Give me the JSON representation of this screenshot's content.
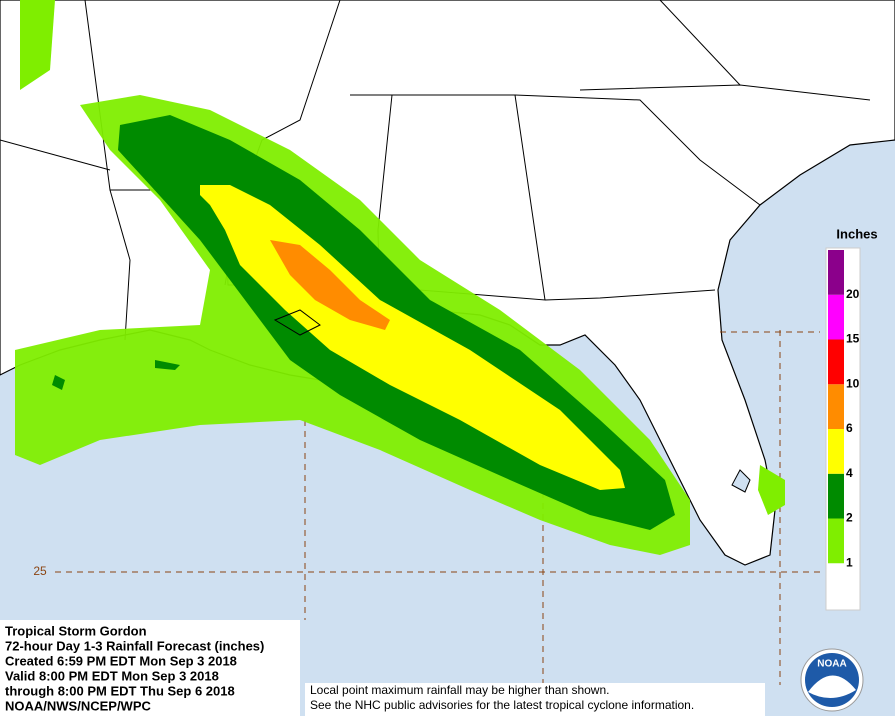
{
  "map": {
    "lat_label": "25"
  },
  "legend": {
    "title": "Inches",
    "levels": [
      1,
      2,
      4,
      6,
      10,
      15,
      20
    ],
    "colors": [
      "#ffffff",
      "#7fee00",
      "#008b00",
      "#ffff00",
      "#ff8c00",
      "#ff0000",
      "#ff00ff",
      "#8b008b"
    ]
  },
  "info": {
    "lines": [
      "Tropical Storm Gordon",
      "72-hour Day 1-3 Rainfall Forecast (inches)",
      "Created 6:59 PM EDT Mon Sep 3 2018",
      "Valid 8:00 PM EDT Mon Sep 3 2018",
      "through 8:00 PM EDT Thu Sep 6 2018",
      "NOAA/NWS/NCEP/WPC"
    ]
  },
  "note": {
    "lines": [
      "Local point maximum rainfall may be higher than shown.",
      "See the NHC public advisories for the latest tropical cyclone information."
    ]
  },
  "logo": "NOAA"
}
